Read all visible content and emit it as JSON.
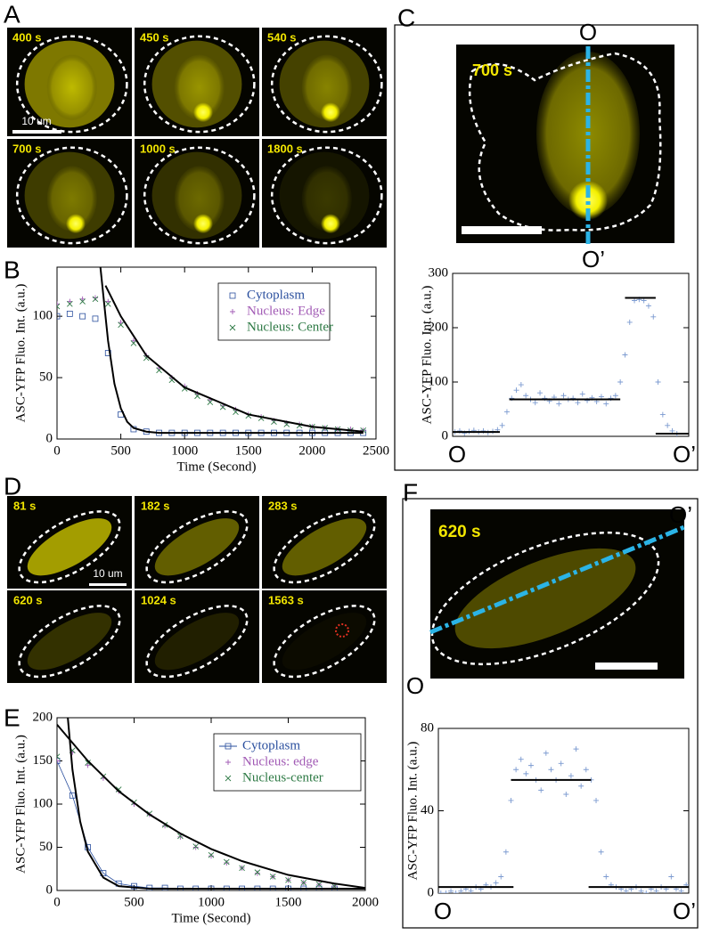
{
  "figure": {
    "panel_labels": [
      "A",
      "B",
      "C",
      "D",
      "E",
      "F"
    ],
    "panel_a_times": [
      "400 s",
      "450 s",
      "540 s",
      "700 s",
      "1000 s",
      "1800 s"
    ],
    "panel_a_scale": "10 um",
    "panel_c_time": "700 s",
    "panel_c_ends": [
      "O",
      "O’"
    ],
    "panel_d_times": [
      "81 s",
      "182 s",
      "283 s",
      "620 s",
      "1024 s",
      "1563 s"
    ],
    "panel_d_scale": "10 um",
    "panel_f_time": "620 s",
    "panel_f_ends": [
      "O",
      "O’"
    ]
  },
  "chart_data": [
    {
      "type": "scatter",
      "xlabel": "Time (Second)",
      "ylabel": "ASC-YFP Fluo. Int. (a.u.)",
      "xlim": [
        0,
        2500
      ],
      "xticks": [
        0,
        500,
        1000,
        1500,
        2000,
        2500
      ],
      "ylim": [
        0,
        140
      ],
      "yticks": [
        0,
        50,
        100
      ],
      "legend": "upper right",
      "x": [
        0,
        100,
        200,
        300,
        400,
        500,
        600,
        700,
        800,
        900,
        1000,
        1100,
        1200,
        1300,
        1400,
        1500,
        1600,
        1700,
        1800,
        1900,
        2000,
        2100,
        2200,
        2300,
        2400
      ],
      "series": [
        {
          "name": "Cytoplasm",
          "color": "#2a4f9e",
          "marker": "square",
          "values": [
            100,
            102,
            100,
            98,
            70,
            20,
            8,
            6,
            5,
            5,
            5,
            5,
            5,
            5,
            5,
            5,
            5,
            5,
            5,
            5,
            5,
            5,
            5,
            5,
            5
          ]
        },
        {
          "name": "Nucleus: Edge",
          "color": "#a25bb5",
          "marker": "plus",
          "values": [
            110,
            112,
            114,
            115,
            112,
            95,
            80,
            68,
            58,
            50,
            43,
            37,
            32,
            27,
            24,
            20,
            18,
            15,
            13,
            12,
            10,
            9,
            8,
            8,
            7
          ]
        },
        {
          "name": "Nucleus: Center",
          "color": "#2e7a45",
          "marker": "x",
          "values": [
            108,
            110,
            112,
            114,
            110,
            93,
            78,
            66,
            56,
            48,
            41,
            35,
            30,
            26,
            22,
            19,
            17,
            14,
            12,
            11,
            10,
            9,
            8,
            7,
            7
          ]
        },
        {
          "color": "#000000",
          "marker": "line",
          "x": [
            340,
            400,
            450,
            500,
            550,
            600,
            700,
            800,
            1000,
            1500,
            2000,
            2400
          ],
          "values": [
            140,
            80,
            45,
            25,
            14,
            9,
            6,
            5,
            5,
            5,
            5,
            5
          ]
        },
        {
          "color": "#000000",
          "marker": "line",
          "x": [
            380,
            500,
            700,
            1000,
            1500,
            2000,
            2400
          ],
          "values": [
            125,
            100,
            68,
            42,
            20,
            10,
            6
          ]
        }
      ]
    },
    {
      "type": "scatter",
      "ylabel": "ASC-YFP Fluo. Int. (a.u.)",
      "x_end_labels": [
        "O",
        "O’"
      ],
      "xlim": [
        0,
        100
      ],
      "ylim": [
        0,
        300
      ],
      "yticks": [
        0,
        100,
        200,
        300
      ],
      "x": [
        1,
        3,
        5,
        7,
        9,
        11,
        13,
        15,
        17,
        19,
        21,
        23,
        25,
        27,
        29,
        31,
        33,
        35,
        37,
        39,
        41,
        43,
        45,
        47,
        49,
        51,
        53,
        55,
        57,
        59,
        61,
        63,
        65,
        67,
        69,
        71,
        73,
        75,
        77,
        79,
        81,
        83,
        85,
        87,
        89,
        91,
        93,
        95
      ],
      "series": [
        {
          "color": "#7b9ad0",
          "marker": "plus",
          "values": [
            8,
            10,
            6,
            9,
            11,
            8,
            10,
            7,
            9,
            12,
            20,
            45,
            70,
            85,
            95,
            75,
            68,
            62,
            80,
            70,
            65,
            72,
            60,
            75,
            68,
            70,
            62,
            78,
            66,
            71,
            64,
            73,
            60,
            70,
            75,
            100,
            150,
            210,
            250,
            252,
            250,
            240,
            220,
            100,
            40,
            20,
            10,
            5
          ]
        },
        {
          "color": "#000000",
          "marker": "line",
          "x": [
            0,
            20
          ],
          "values": [
            8,
            8
          ]
        },
        {
          "color": "#000000",
          "marker": "line",
          "x": [
            24,
            71
          ],
          "values": [
            68,
            68
          ]
        },
        {
          "color": "#000000",
          "marker": "line",
          "x": [
            73,
            86
          ],
          "values": [
            255,
            255
          ]
        },
        {
          "color": "#000000",
          "marker": "line",
          "x": [
            86,
            100
          ],
          "values": [
            5,
            5
          ]
        }
      ]
    },
    {
      "type": "scatter",
      "xlabel": "Time (Second)",
      "ylabel": "ASC-YFP Fluo. Int. (a.u.)",
      "xlim": [
        0,
        2000
      ],
      "xticks": [
        0,
        500,
        1000,
        1500,
        2000
      ],
      "ylim": [
        0,
        200
      ],
      "yticks": [
        0,
        50,
        100,
        150,
        200
      ],
      "legend": "upper right",
      "x": [
        0,
        100,
        200,
        300,
        400,
        500,
        600,
        700,
        800,
        900,
        1000,
        1100,
        1200,
        1300,
        1400,
        1500,
        1600,
        1700,
        1800
      ],
      "series": [
        {
          "name": "Cytoplasm",
          "color": "#2a4f9e",
          "marker": "square",
          "connect": true,
          "values": [
            150,
            110,
            50,
            20,
            8,
            5,
            3,
            3,
            2,
            2,
            2,
            2,
            2,
            2,
            2,
            2,
            2,
            2,
            2
          ]
        },
        {
          "name": "Nucleus: edge",
          "color": "#a25bb5",
          "marker": "plus",
          "values": [
            150,
            160,
            145,
            130,
            115,
            100,
            88,
            75,
            62,
            50,
            40,
            32,
            26,
            20,
            16,
            12,
            9,
            7,
            5
          ]
        },
        {
          "name": "Nucleus-center",
          "color": "#2e7a45",
          "marker": "x",
          "values": [
            155,
            162,
            148,
            132,
            117,
            102,
            89,
            76,
            63,
            51,
            41,
            33,
            26,
            21,
            16,
            12,
            9,
            7,
            5
          ]
        },
        {
          "color": "#000000",
          "marker": "line",
          "x": [
            70,
            100,
            150,
            200,
            300,
            400,
            600,
            1000,
            2000
          ],
          "values": [
            200,
            140,
            80,
            45,
            15,
            5,
            2,
            2,
            2
          ]
        },
        {
          "color": "#000000",
          "marker": "line",
          "x": [
            0,
            200,
            400,
            600,
            800,
            1000,
            1200,
            1500,
            1800,
            2000
          ],
          "values": [
            192,
            150,
            115,
            88,
            66,
            48,
            34,
            18,
            8,
            3
          ]
        }
      ]
    },
    {
      "type": "scatter",
      "ylabel": "ASC-YFP Fluo. Int. (a.u.)",
      "x_end_labels": [
        "O",
        "O’"
      ],
      "xlim": [
        0,
        100
      ],
      "ylim": [
        0,
        80
      ],
      "yticks": [
        0,
        40,
        80
      ],
      "x": [
        1,
        3,
        5,
        7,
        9,
        11,
        13,
        15,
        17,
        19,
        21,
        23,
        25,
        27,
        29,
        31,
        33,
        35,
        37,
        39,
        41,
        43,
        45,
        47,
        49,
        51,
        53,
        55,
        57,
        59,
        61,
        63,
        65,
        67,
        69,
        71,
        73,
        75,
        77,
        79,
        81,
        83,
        85,
        87,
        89,
        91,
        93,
        95,
        97,
        99
      ],
      "series": [
        {
          "color": "#7b9ad0",
          "marker": "plus",
          "values": [
            0,
            0,
            1,
            0,
            1,
            2,
            1,
            3,
            2,
            4,
            3,
            5,
            8,
            20,
            45,
            60,
            65,
            58,
            62,
            55,
            50,
            68,
            60,
            55,
            63,
            48,
            57,
            70,
            52,
            60,
            55,
            45,
            20,
            8,
            4,
            3,
            2,
            1,
            2,
            3,
            1,
            0,
            2,
            1,
            3,
            2,
            8,
            2,
            1,
            4
          ]
        },
        {
          "color": "#000000",
          "marker": "line",
          "x": [
            0,
            30
          ],
          "values": [
            3,
            3
          ]
        },
        {
          "color": "#000000",
          "marker": "line",
          "x": [
            29,
            61
          ],
          "values": [
            55,
            55
          ]
        },
        {
          "color": "#000000",
          "marker": "line",
          "x": [
            60,
            100
          ],
          "values": [
            3,
            3
          ]
        }
      ]
    }
  ]
}
